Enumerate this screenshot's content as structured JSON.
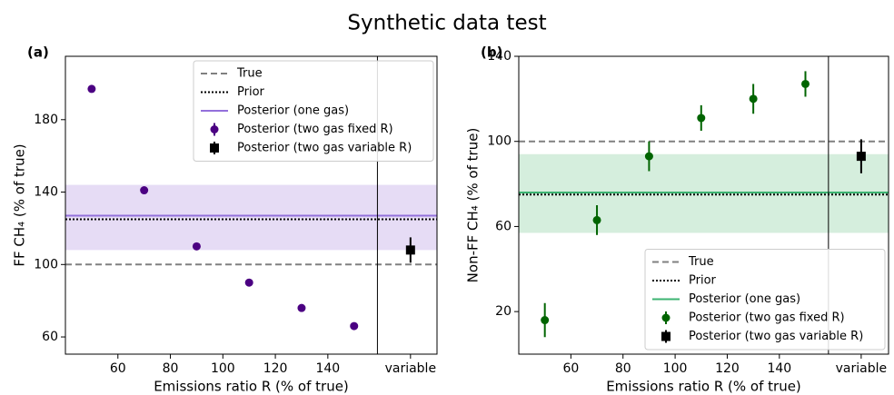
{
  "title": "Synthetic data test",
  "chart_data": [
    {
      "type": "scatter",
      "title": "(a)",
      "x_label": "Emissions ratio R (% of true)",
      "y_label": "FF CH₄ (% of true)",
      "xlim": [
        40,
        181.6
      ],
      "ylim": [
        50.5,
        215
      ],
      "xticks": [
        60,
        80,
        100,
        120,
        140,
        {
          "value": 171.5,
          "label": "variable"
        }
      ],
      "yticks": [
        60,
        100,
        140,
        180
      ],
      "legend": "upper right",
      "series": [
        {
          "name": "True",
          "color": "#808080",
          "style": "dashed",
          "hline": 100
        },
        {
          "name": "Prior",
          "color": "#000000",
          "style": "dotted",
          "hline": 125
        },
        {
          "name": "Posterior (one gas)",
          "color": "#9370db",
          "band_color": "#e6dcf5",
          "hline": 127,
          "band": [
            108,
            144
          ]
        },
        {
          "name": "Posterior (two gas fixed R)",
          "color": "#4b0082",
          "marker": "circle",
          "x": [
            50,
            70,
            90,
            110,
            130,
            150
          ],
          "values": [
            197,
            141,
            110,
            90,
            76,
            66
          ]
        },
        {
          "name": "Posterior (two gas variable R)",
          "color": "#000000",
          "marker": "square",
          "x": [
            171.5
          ],
          "values": [
            108
          ],
          "errors": [
            7
          ]
        }
      ]
    },
    {
      "type": "scatter",
      "title": "(b)",
      "x_label": "Emissions ratio R (% of true)",
      "y_label": "Non-FF CH₄ (% of true)",
      "xlim": [
        40,
        181.9
      ],
      "ylim": [
        0,
        140
      ],
      "xticks": [
        60,
        80,
        100,
        120,
        140,
        {
          "value": 171.4,
          "label": "variable"
        }
      ],
      "yticks": [
        20,
        60,
        100,
        140
      ],
      "legend": "lower right",
      "series": [
        {
          "name": "True",
          "color": "#808080",
          "style": "dashed",
          "hline": 100
        },
        {
          "name": "Prior",
          "color": "#000000",
          "style": "dotted",
          "hline": 75
        },
        {
          "name": "Posterior (one gas)",
          "color": "#3cb371",
          "band_color": "#d5eedd",
          "hline": 76,
          "band": [
            57,
            94
          ]
        },
        {
          "name": "Posterior (two gas fixed R)",
          "color": "#006400",
          "marker": "circle",
          "x": [
            50,
            70,
            90,
            110,
            130,
            150
          ],
          "values": [
            16,
            63,
            93,
            111,
            120,
            127
          ],
          "errors": [
            8,
            7,
            7,
            6,
            7,
            6
          ]
        },
        {
          "name": "Posterior (two gas variable R)",
          "color": "#000000",
          "marker": "square",
          "x": [
            171.4
          ],
          "values": [
            93
          ],
          "errors": [
            8
          ]
        }
      ]
    }
  ]
}
